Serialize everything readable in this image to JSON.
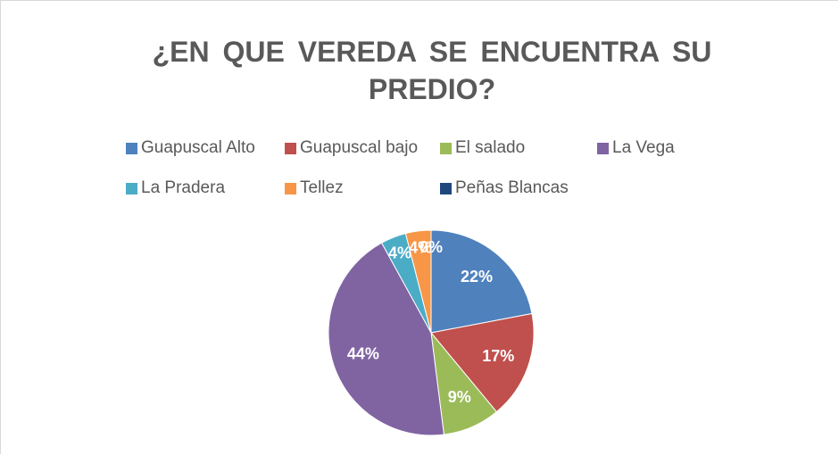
{
  "chart_data": {
    "type": "pie",
    "title": "¿EN QUE VEREDA SE ENCUENTRA SU PREDIO?",
    "categories": [
      "Guapuscal Alto",
      "Guapuscal bajo",
      "El salado",
      "La Vega",
      "La Pradera",
      "Tellez",
      "Peñas Blancas"
    ],
    "values": [
      22,
      17,
      9,
      44,
      4,
      4,
      0
    ],
    "value_labels": [
      "22%",
      "17%",
      "9%",
      "44%",
      "4%",
      "4%",
      "0%"
    ],
    "colors": [
      "#4f81bd",
      "#c0504d",
      "#9bbb59",
      "#8064a2",
      "#4bacc6",
      "#f79646",
      "#1f497d"
    ]
  }
}
